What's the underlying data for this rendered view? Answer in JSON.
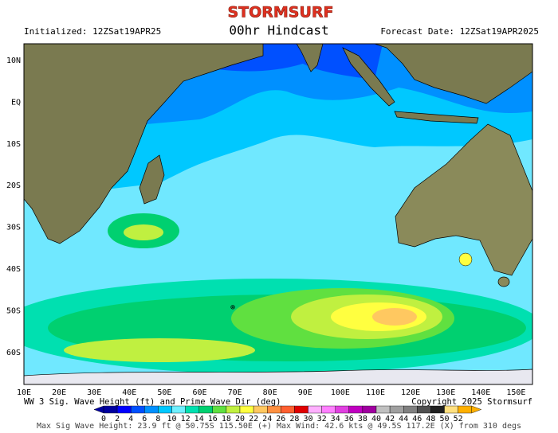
{
  "header": {
    "brand": "STORMSURF",
    "initialized": "Initialized: 12ZSat19APR25",
    "title": "00hr Hindcast",
    "forecast_date": "Forecast Date: 12ZSat19APR2025"
  },
  "map": {
    "lat_labels": [
      "10N",
      "EQ",
      "10S",
      "20S",
      "30S",
      "40S",
      "50S",
      "60S"
    ],
    "lon_labels": [
      "10E",
      "20E",
      "30E",
      "40E",
      "50E",
      "60E",
      "70E",
      "80E",
      "90E",
      "100E",
      "110E",
      "120E",
      "130E",
      "140E",
      "150E"
    ]
  },
  "footer": {
    "legend_title": "WW 3 Sig. Wave Height (ft) and Prime Wave Dir (deg)",
    "copyright": "Copyright 2025 Stormsurf",
    "max_info": "Max Sig Wave Height: 23.9 ft @ 50.75S 115.50E (+)   Max Wind: 42.6 kts @ 49.5S 117.2E (X) from 310 degs"
  },
  "colorbar": {
    "labels": [
      "0",
      "2",
      "4",
      "6",
      "8",
      "10",
      "12",
      "14",
      "16",
      "18",
      "20",
      "22",
      "24",
      "26",
      "28",
      "30",
      "32",
      "34",
      "36",
      "38",
      "40",
      "42",
      "44",
      "46",
      "48",
      "50",
      "52"
    ],
    "colors": [
      "#0000a0",
      "#0000ff",
      "#0050ff",
      "#0090ff",
      "#00c8ff",
      "#70f0ff",
      "#00e0b0",
      "#00d070",
      "#60e040",
      "#c0f040",
      "#ffff40",
      "#ffc860",
      "#ff9040",
      "#ff6030",
      "#e00000",
      "#ffb0ff",
      "#ff80ff",
      "#e040e0",
      "#c000c0",
      "#a000a0",
      "#c0c0c0",
      "#a0a0a0",
      "#808080",
      "#505050",
      "#202020",
      "#ffe080",
      "#ffb000"
    ]
  }
}
